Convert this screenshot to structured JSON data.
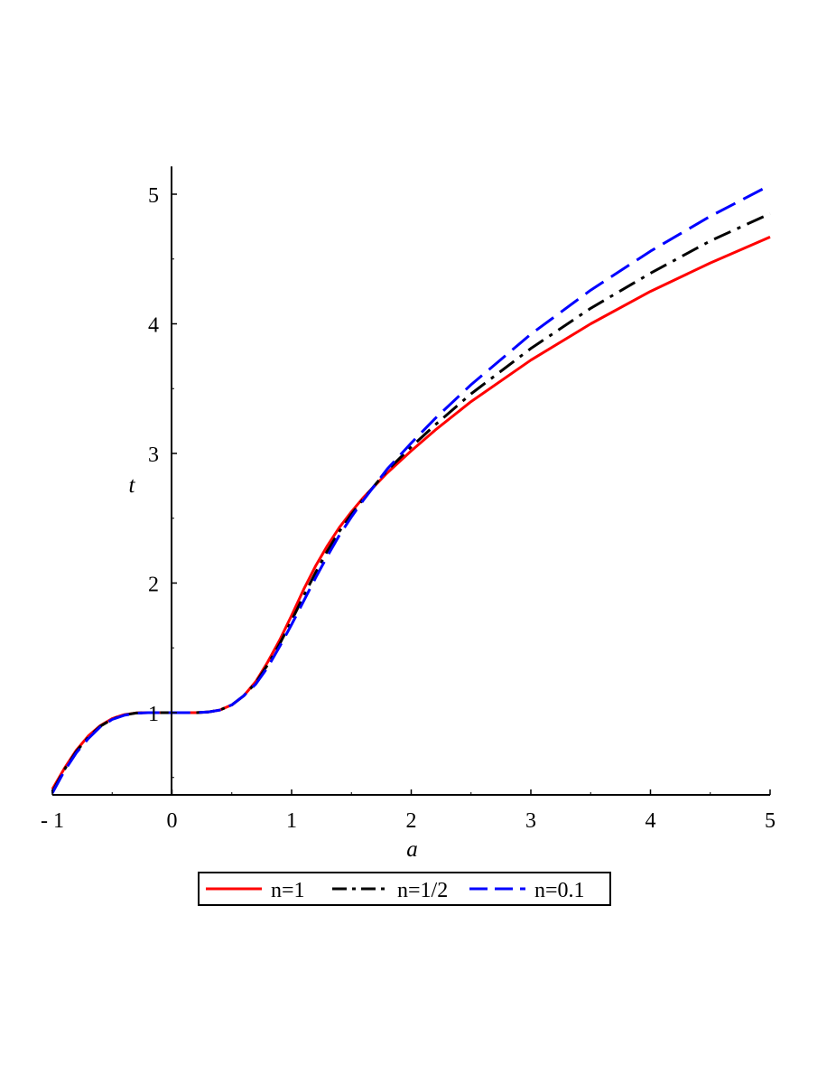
{
  "chart_data": {
    "type": "line",
    "xlabel": "a",
    "ylabel": "t",
    "xlim": [
      -1,
      5
    ],
    "ylim": [
      0.35,
      5.2
    ],
    "xticks": [
      {
        "value": -1,
        "label": "- 1"
      },
      {
        "value": 0,
        "label": "0"
      },
      {
        "value": 1,
        "label": "1"
      },
      {
        "value": 2,
        "label": "2"
      },
      {
        "value": 3,
        "label": "3"
      },
      {
        "value": 4,
        "label": "4"
      },
      {
        "value": 5,
        "label": "5"
      }
    ],
    "yticks": [
      {
        "value": 1,
        "label": "1"
      },
      {
        "value": 2,
        "label": "2"
      },
      {
        "value": 3,
        "label": "3"
      },
      {
        "value": 4,
        "label": "4"
      },
      {
        "value": 5,
        "label": "5"
      }
    ],
    "grid": false,
    "legend_position": "bottom",
    "series": [
      {
        "name": "n=1",
        "color": "#ff0000",
        "dash": "solid",
        "points": [
          [
            -1,
            0.41
          ],
          [
            -0.9,
            0.57
          ],
          [
            -0.8,
            0.71
          ],
          [
            -0.7,
            0.82
          ],
          [
            -0.6,
            0.9
          ],
          [
            -0.5,
            0.955
          ],
          [
            -0.4,
            0.985
          ],
          [
            -0.3,
            0.998
          ],
          [
            -0.2,
            1.0
          ],
          [
            0,
            1.0
          ],
          [
            0.2,
            1.0
          ],
          [
            0.3,
            1.005
          ],
          [
            0.4,
            1.02
          ],
          [
            0.5,
            1.06
          ],
          [
            0.6,
            1.13
          ],
          [
            0.7,
            1.24
          ],
          [
            0.8,
            1.39
          ],
          [
            0.9,
            1.56
          ],
          [
            1.0,
            1.75
          ],
          [
            1.1,
            1.95
          ],
          [
            1.2,
            2.13
          ],
          [
            1.3,
            2.29
          ],
          [
            1.4,
            2.43
          ],
          [
            1.5,
            2.55
          ],
          [
            1.6,
            2.66
          ],
          [
            1.8,
            2.85
          ],
          [
            2.0,
            3.02
          ],
          [
            2.2,
            3.18
          ],
          [
            2.5,
            3.4
          ],
          [
            3.0,
            3.72
          ],
          [
            3.5,
            4.0
          ],
          [
            4.0,
            4.25
          ],
          [
            4.5,
            4.47
          ],
          [
            5.0,
            4.67
          ]
        ]
      },
      {
        "name": "n=1/2",
        "color": "#000000",
        "dash": "dashdot",
        "points": [
          [
            -1,
            0.39
          ],
          [
            -0.9,
            0.56
          ],
          [
            -0.8,
            0.7
          ],
          [
            -0.7,
            0.81
          ],
          [
            -0.6,
            0.895
          ],
          [
            -0.5,
            0.95
          ],
          [
            -0.4,
            0.982
          ],
          [
            -0.3,
            0.997
          ],
          [
            -0.2,
            1.0
          ],
          [
            0,
            1.0
          ],
          [
            0.2,
            1.0
          ],
          [
            0.3,
            1.005
          ],
          [
            0.4,
            1.02
          ],
          [
            0.5,
            1.06
          ],
          [
            0.6,
            1.13
          ],
          [
            0.7,
            1.23
          ],
          [
            0.8,
            1.37
          ],
          [
            0.9,
            1.53
          ],
          [
            1.0,
            1.71
          ],
          [
            1.1,
            1.9
          ],
          [
            1.2,
            2.08
          ],
          [
            1.3,
            2.25
          ],
          [
            1.4,
            2.4
          ],
          [
            1.5,
            2.53
          ],
          [
            1.6,
            2.65
          ],
          [
            1.8,
            2.87
          ],
          [
            2.0,
            3.05
          ],
          [
            2.2,
            3.22
          ],
          [
            2.5,
            3.46
          ],
          [
            3.0,
            3.81
          ],
          [
            3.5,
            4.12
          ],
          [
            4.0,
            4.39
          ],
          [
            4.5,
            4.64
          ],
          [
            5.0,
            4.85
          ]
        ]
      },
      {
        "name": "n=0.1",
        "color": "#0000ff",
        "dash": "dashed",
        "points": [
          [
            -1,
            0.38
          ],
          [
            -0.9,
            0.55
          ],
          [
            -0.8,
            0.69
          ],
          [
            -0.7,
            0.8
          ],
          [
            -0.6,
            0.89
          ],
          [
            -0.5,
            0.948
          ],
          [
            -0.4,
            0.98
          ],
          [
            -0.3,
            0.996
          ],
          [
            -0.2,
            1.0
          ],
          [
            0,
            1.0
          ],
          [
            0.2,
            1.0
          ],
          [
            0.3,
            1.005
          ],
          [
            0.4,
            1.02
          ],
          [
            0.5,
            1.06
          ],
          [
            0.6,
            1.13
          ],
          [
            0.7,
            1.22
          ],
          [
            0.8,
            1.35
          ],
          [
            0.9,
            1.51
          ],
          [
            1.0,
            1.68
          ],
          [
            1.1,
            1.86
          ],
          [
            1.2,
            2.04
          ],
          [
            1.3,
            2.21
          ],
          [
            1.4,
            2.37
          ],
          [
            1.5,
            2.51
          ],
          [
            1.6,
            2.64
          ],
          [
            1.8,
            2.88
          ],
          [
            2.0,
            3.08
          ],
          [
            2.2,
            3.27
          ],
          [
            2.5,
            3.53
          ],
          [
            3.0,
            3.92
          ],
          [
            3.5,
            4.26
          ],
          [
            4.0,
            4.56
          ],
          [
            4.5,
            4.83
          ],
          [
            5.0,
            5.07
          ]
        ]
      }
    ]
  }
}
